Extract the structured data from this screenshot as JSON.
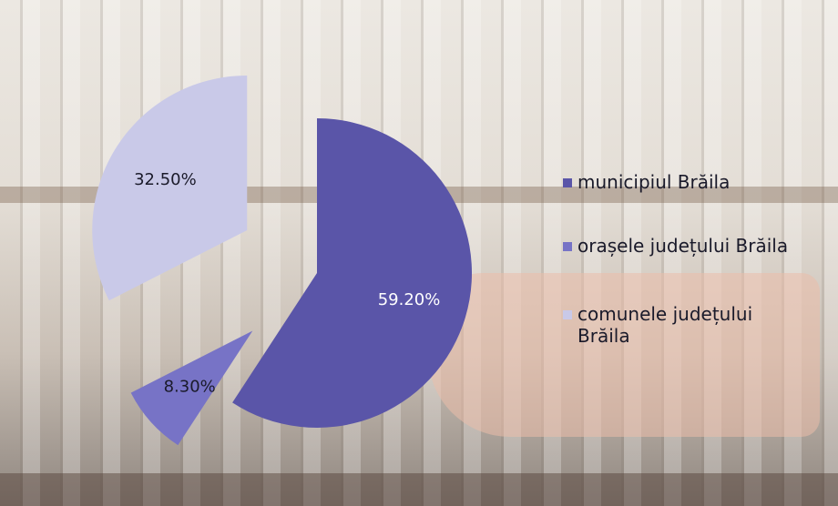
{
  "chart_data": {
    "type": "pie",
    "categories": [
      "municipiul Brăila",
      "orașele județului Brăila",
      "comunele județului Brăila"
    ],
    "values": [
      59.2,
      8.3,
      32.5
    ],
    "value_labels": [
      "59.20%",
      "8.30%",
      "32.50%"
    ],
    "colors": [
      "#5a55a8",
      "#7773c6",
      "#c9c9e8"
    ],
    "legend": "right"
  }
}
